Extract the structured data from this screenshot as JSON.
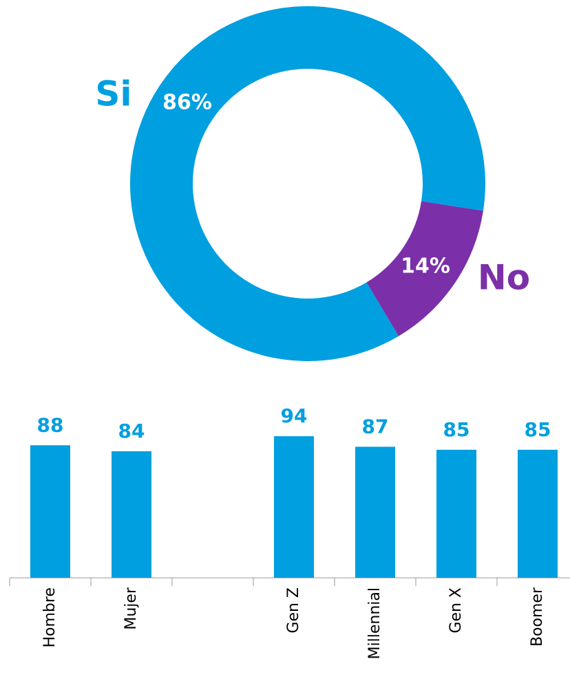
{
  "chart_data": [
    {
      "type": "donut",
      "labels": [
        "Si",
        "No"
      ],
      "values": [
        86,
        14
      ],
      "value_labels": [
        "86%",
        "14%"
      ],
      "colors": [
        "#009fdf",
        "#7b2fa8"
      ]
    },
    {
      "type": "bar",
      "categories": [
        "Hombre",
        "Mujer",
        null,
        "Gen Z",
        "Millennial",
        "Gen X",
        "Boomer"
      ],
      "values": [
        88,
        84,
        null,
        94,
        87,
        85,
        85
      ],
      "color": "#009fdf",
      "ylim": [
        0,
        100
      ]
    }
  ]
}
